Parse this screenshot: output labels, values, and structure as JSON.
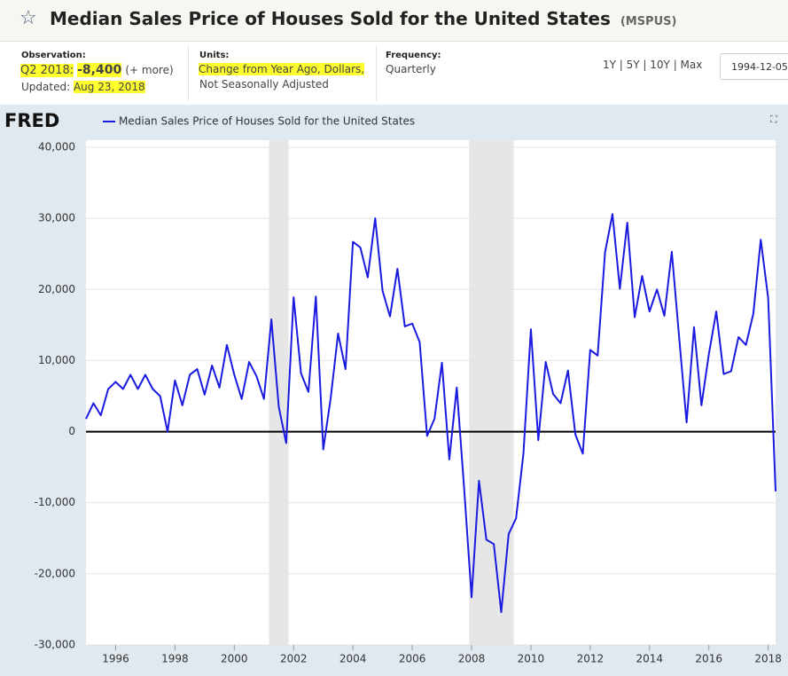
{
  "header": {
    "title": "Median Sales Price of Houses Sold for the United States",
    "code": "(MSPUS)",
    "observation_label": "Observation:",
    "observation_period": "Q2 2018:",
    "observation_value": "-8,400",
    "more": "(+ more)",
    "updated_label": "Updated:",
    "updated": "Aug 23, 2018",
    "units_label": "Units:",
    "units_1": "Change from Year Ago, Dollars,",
    "units_2": "Not Seasonally Adjusted",
    "frequency_label": "Frequency:",
    "frequency": "Quarterly",
    "ranges": "1Y | 5Y | 10Y | Max",
    "start_date": "1994-12-05",
    "logo": "FRED"
  },
  "chart_data": {
    "type": "line",
    "x": [
      1995,
      1995.25,
      1995.5,
      1995.75,
      1996,
      1996.25,
      1996.5,
      1996.75,
      1997,
      1997.25,
      1997.5,
      1997.75,
      1998,
      1998.25,
      1998.5,
      1998.75,
      1999,
      1999.25,
      1999.5,
      1999.75,
      2000,
      2000.25,
      2000.5,
      2000.75,
      2001,
      2001.25,
      2001.5,
      2001.75,
      2002,
      2002.25,
      2002.5,
      2002.75,
      2003,
      2003.25,
      2003.5,
      2003.75,
      2004,
      2004.25,
      2004.5,
      2004.75,
      2005,
      2005.25,
      2005.5,
      2005.75,
      2006,
      2006.25,
      2006.5,
      2006.75,
      2007,
      2007.25,
      2007.5,
      2007.75,
      2008,
      2008.25,
      2008.5,
      2008.75,
      2009,
      2009.25,
      2009.5,
      2009.75,
      2010,
      2010.25,
      2010.5,
      2010.75,
      2011,
      2011.25,
      2011.5,
      2011.75,
      2012,
      2012.25,
      2012.5,
      2012.75,
      2013,
      2013.25,
      2013.5,
      2013.75,
      2014,
      2014.25,
      2014.5,
      2014.75,
      2015,
      2015.25,
      2015.5,
      2015.75,
      2016,
      2016.25,
      2016.5,
      2016.75,
      2017,
      2017.25,
      2017.5,
      2017.75,
      2018,
      2018.25
    ],
    "series": [
      {
        "name": "Median Sales Price of Houses Sold for the United States",
        "color": "#1a1ae0",
        "values": [
          1800,
          4000,
          2300,
          6000,
          7000,
          6000,
          8000,
          6000,
          8000,
          6000,
          5000,
          0,
          7200,
          3700,
          8000,
          8800,
          5200,
          9300,
          6200,
          12200,
          8000,
          4600,
          9800,
          7800,
          4600,
          15800,
          3500,
          -1600,
          18900,
          8200,
          5600,
          19000,
          -2500,
          4700,
          13800,
          8800,
          26700,
          25900,
          21700,
          30000,
          19800,
          16200,
          22900,
          14800,
          15200,
          12600,
          -600,
          1800,
          9700,
          -3900,
          6200,
          -8000,
          -23300,
          -6900,
          -15200,
          -15800,
          -25400,
          -14400,
          -12200,
          -3000,
          14400,
          -1200,
          9800,
          5300,
          4000,
          8600,
          -400,
          -3100,
          11500,
          10700,
          25200,
          30600,
          20100,
          29400,
          16100,
          21900,
          16900,
          20000,
          16300,
          25300,
          13200,
          1300,
          14700,
          3700,
          10900,
          16900,
          8100,
          8500,
          13300,
          12200,
          16600,
          27000,
          18800,
          -8400
        ]
      }
    ],
    "recessions": [
      [
        2001.17,
        2001.83
      ],
      [
        2007.92,
        2009.42
      ]
    ],
    "xlim": [
      1995,
      2018.25
    ],
    "xticks": [
      1996,
      1998,
      2000,
      2002,
      2004,
      2006,
      2008,
      2010,
      2012,
      2014,
      2016,
      2018
    ],
    "ylim": [
      -30000,
      40000
    ],
    "yticks": [
      {
        "value": -30000,
        "label": "-30,000"
      },
      {
        "value": -20000,
        "label": "-20,000"
      },
      {
        "value": -10000,
        "label": "-10,000"
      },
      0,
      {
        "value": 10000,
        "label": "10,000"
      },
      {
        "value": 20000,
        "label": "20,000"
      },
      {
        "value": 30000,
        "label": "30,000"
      },
      {
        "value": 40000,
        "label": "40,000"
      }
    ],
    "grid": true
  }
}
